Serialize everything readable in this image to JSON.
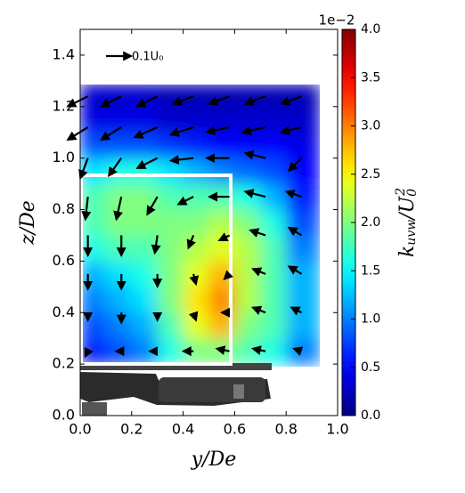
{
  "chart_data": {
    "type": "heatmap",
    "colormap": "jet",
    "clim": [
      0,
      4.0
    ],
    "offset_text": "1e−2",
    "xlabel": "y/De",
    "ylabel": "z/De",
    "colorbar_label": [
      "k",
      "uvw",
      "/U",
      "0",
      "2"
    ],
    "xlim": [
      0,
      1.0
    ],
    "ylim": [
      0,
      1.5
    ],
    "xticks": [
      {
        "value": 0,
        "label": "0.0"
      },
      0.2,
      0.4,
      0.6,
      0.8,
      {
        "value": 1.0,
        "label": "1.0"
      }
    ],
    "yticks": [
      {
        "value": 0,
        "label": "0.0"
      },
      0.2,
      0.4,
      0.6,
      0.8,
      {
        "value": 1.0,
        "label": "1.0"
      },
      1.2,
      1.4
    ],
    "cticks": [
      {
        "value": 0,
        "label": "0.0"
      },
      0.5,
      {
        "value": 1.0,
        "label": "1.0"
      },
      1.5,
      {
        "value": 2.0,
        "label": "2.0"
      },
      2.5,
      {
        "value": 3.0,
        "label": "3.0"
      },
      3.5,
      {
        "value": 4.0,
        "label": "4.0"
      }
    ],
    "xbins": [
      0,
      0.1,
      0.2,
      0.3,
      0.4,
      0.5,
      0.6,
      0.7,
      0.8,
      0.93
    ],
    "ybins": [
      0.2,
      0.3,
      0.4,
      0.5,
      0.6,
      0.7,
      0.8,
      0.9,
      1.0,
      1.1,
      1.2,
      1.29
    ],
    "z": [
      [
        0.6,
        0.8,
        1.0,
        1.6,
        2.0,
        2.0,
        1.8,
        1.6,
        1.0
      ],
      [
        0.8,
        1.0,
        1.2,
        1.8,
        2.4,
        2.8,
        2.0,
        1.8,
        1.2
      ],
      [
        1.0,
        1.2,
        1.4,
        2.0,
        2.6,
        3.0,
        2.2,
        1.8,
        1.2
      ],
      [
        1.2,
        1.4,
        1.6,
        2.0,
        2.4,
        2.8,
        2.2,
        1.8,
        1.2
      ],
      [
        1.6,
        1.8,
        1.8,
        2.0,
        2.2,
        2.4,
        2.2,
        1.8,
        1.0
      ],
      [
        1.8,
        2.0,
        2.0,
        2.0,
        2.0,
        2.2,
        2.0,
        1.6,
        0.8
      ],
      [
        1.8,
        2.0,
        2.0,
        1.8,
        1.8,
        1.8,
        1.6,
        1.2,
        0.6
      ],
      [
        1.4,
        1.6,
        1.6,
        1.4,
        1.2,
        1.0,
        0.9,
        0.8,
        0.5
      ],
      [
        0.8,
        0.8,
        0.8,
        0.7,
        0.6,
        0.5,
        0.5,
        0.5,
        0.4
      ],
      [
        0.4,
        0.4,
        0.4,
        0.3,
        0.3,
        0.3,
        0.3,
        0.3,
        0.3
      ],
      [
        0.3,
        0.3,
        0.3,
        0.2,
        0.2,
        0.2,
        0.2,
        0.2,
        0.2
      ]
    ],
    "quiver": {
      "reference": {
        "value": 0.1,
        "label": "0.1U₀"
      },
      "x": [
        0.03,
        0.16,
        0.3,
        0.44,
        0.58,
        0.72,
        0.86
      ],
      "y": [
        0.25,
        0.4,
        0.55,
        0.7,
        0.85,
        1.0,
        1.12,
        1.24
      ],
      "u": [
        [
          -0.01,
          -0.02,
          -0.03,
          -0.04,
          -0.05,
          -0.05,
          -0.03
        ],
        [
          0,
          0,
          0,
          0.01,
          -0.03,
          -0.05,
          -0.04
        ],
        [
          0,
          0,
          0,
          0.01,
          -0.02,
          -0.05,
          -0.05
        ],
        [
          0,
          0,
          -0.01,
          -0.02,
          -0.04,
          -0.06,
          -0.05
        ],
        [
          -0.01,
          -0.02,
          -0.04,
          -0.06,
          -0.08,
          -0.08,
          -0.06
        ],
        [
          -0.03,
          -0.05,
          -0.08,
          -0.09,
          -0.09,
          -0.08,
          -0.05
        ],
        [
          -0.08,
          -0.08,
          -0.09,
          -0.09,
          -0.09,
          -0.09,
          -0.08
        ],
        [
          -0.08,
          -0.08,
          -0.08,
          -0.08,
          -0.08,
          -0.08,
          -0.08
        ]
      ],
      "v": [
        [
          -0.02,
          0,
          0,
          0,
          0.01,
          0.01,
          0.01
        ],
        [
          -0.03,
          -0.04,
          -0.03,
          -0.03,
          0,
          0.02,
          0.02
        ],
        [
          -0.06,
          -0.06,
          -0.05,
          -0.04,
          -0.02,
          0.02,
          0.03
        ],
        [
          -0.08,
          -0.08,
          -0.07,
          -0.05,
          -0.02,
          0.02,
          0.03
        ],
        [
          -0.09,
          -0.09,
          -0.07,
          -0.03,
          0,
          0.02,
          0.02
        ],
        [
          -0.08,
          -0.07,
          -0.04,
          -0.01,
          0,
          0.02,
          -0.05
        ],
        [
          -0.05,
          -0.05,
          -0.04,
          -0.03,
          -0.02,
          -0.02,
          -0.02
        ],
        [
          -0.04,
          -0.04,
          -0.04,
          -0.03,
          -0.03,
          -0.03,
          -0.03
        ]
      ]
    }
  }
}
